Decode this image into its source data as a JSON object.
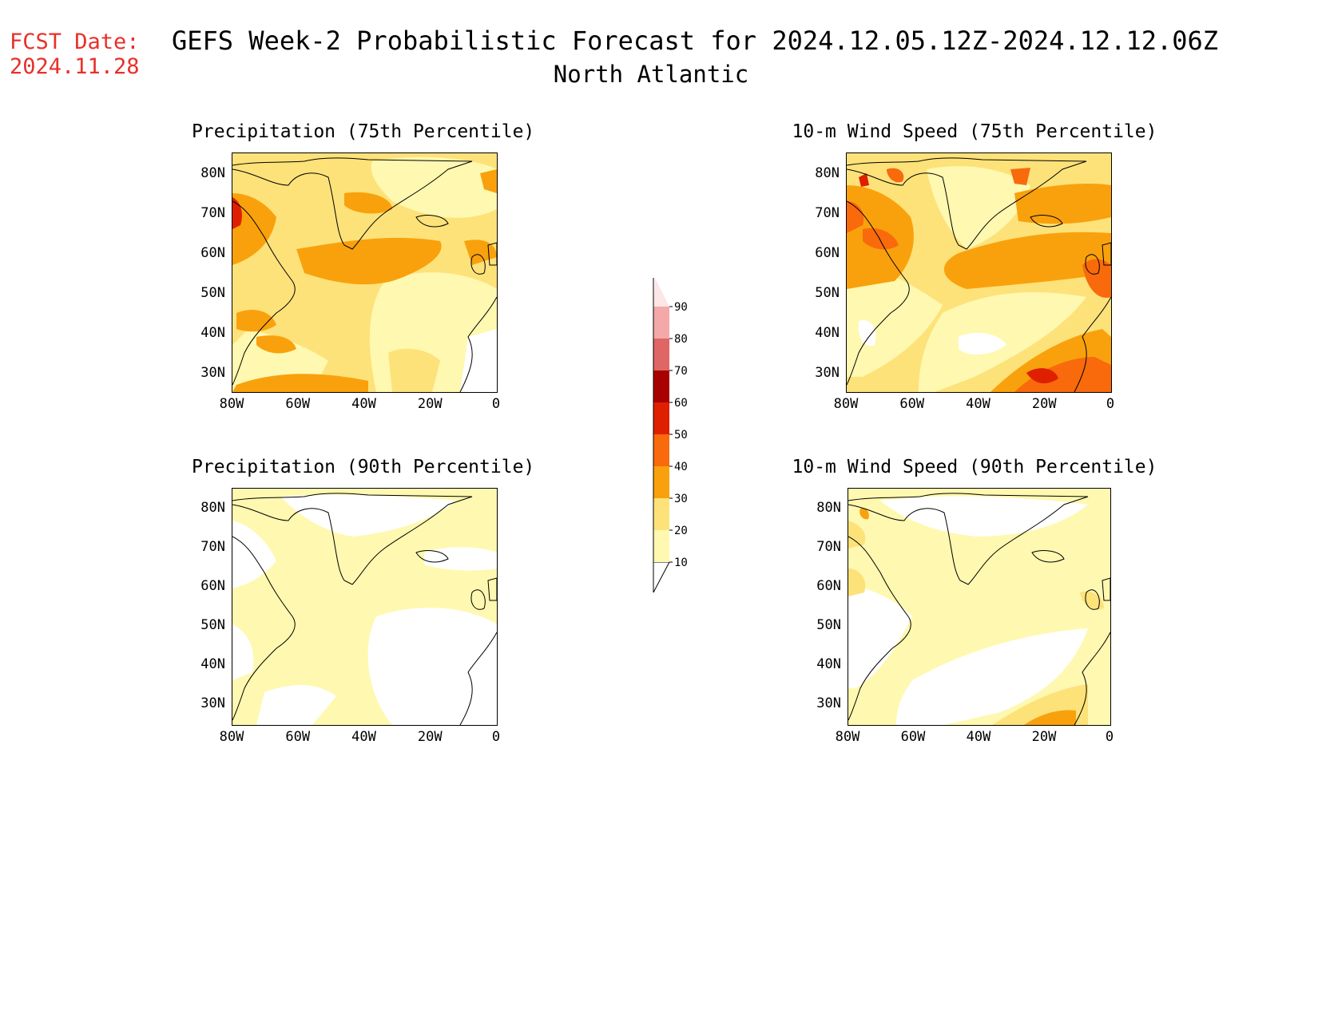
{
  "fcst_label": "FCST Date:",
  "fcst_date": "2024.11.28",
  "title": "GEFS Week-2 Probabilistic Forecast for 2024.12.05.12Z-2024.12.12.06Z",
  "subtitle": "North Atlantic",
  "panels": [
    {
      "title": "Precipitation (75th Percentile)"
    },
    {
      "title": "10-m Wind Speed (75th Percentile)"
    },
    {
      "title": "Precipitation (90th Percentile)"
    },
    {
      "title": "10-m Wind Speed (90th Percentile)"
    }
  ],
  "lat_ticks": [
    "80N",
    "70N",
    "60N",
    "50N",
    "40N",
    "30N"
  ],
  "lon_ticks": [
    "80W",
    "60W",
    "40W",
    "20W",
    "0"
  ],
  "colorbar": {
    "levels": [
      "10",
      "20",
      "30",
      "40",
      "50",
      "60",
      "70",
      "80",
      "90"
    ],
    "colors": [
      "#fff8b0",
      "#fde27a",
      "#f9a10c",
      "#f86a0c",
      "#df2000",
      "#a80000",
      "#e06666",
      "#f4a8a8",
      "#fde6e6"
    ]
  },
  "colors": {
    "lightest": "#fff8b0",
    "light": "#fde27a",
    "orange": "#f9a10c",
    "dark_orange": "#f86a0c",
    "red": "#df2000",
    "fcst_text": "#e8302a"
  }
}
